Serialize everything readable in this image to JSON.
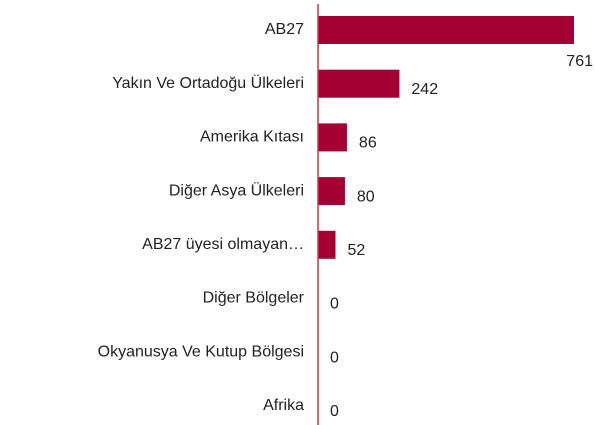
{
  "chart_data": {
    "type": "bar",
    "orientation": "horizontal",
    "categories": [
      "AB27",
      "Yakın Ve Ortadoğu Ülkeleri",
      "Amerika Kıtası",
      "Diğer Asya Ülkeleri",
      "AB27 üyesi olmayan…",
      "Diğer Bölgeler",
      "Okyanusya Ve Kutup Bölgesi",
      "Afrika"
    ],
    "values": [
      761,
      242,
      86,
      80,
      52,
      0,
      0,
      0
    ],
    "color": "#a50034",
    "axis_color": "#d0343c"
  }
}
